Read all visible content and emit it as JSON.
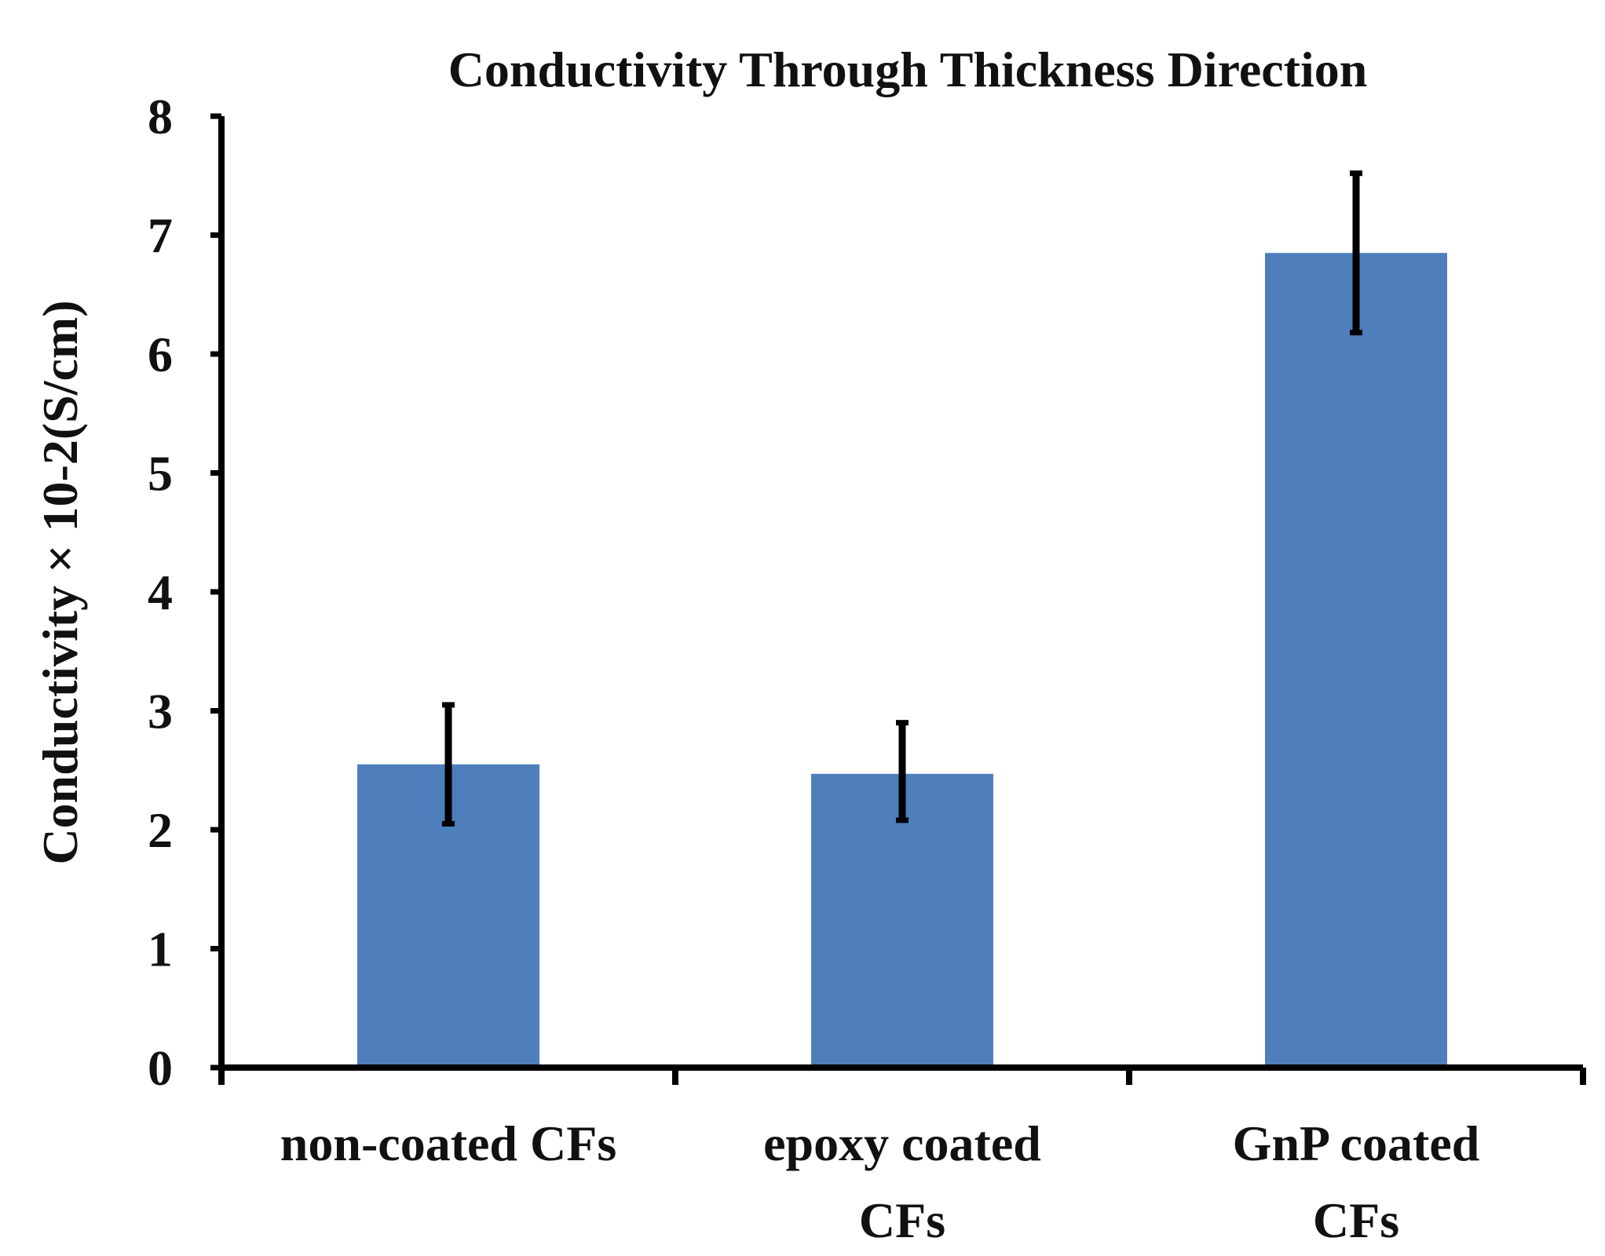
{
  "chart_data": {
    "type": "bar",
    "title": "Conductivity Through Thickness Direction",
    "xlabel": "",
    "ylabel": "Conductivity × 10-2(S/cm)",
    "categories": [
      [
        "non-coated CFs"
      ],
      [
        "epoxy coated",
        "CFs"
      ],
      [
        "GnP coated",
        "CFs"
      ]
    ],
    "values": [
      2.55,
      2.47,
      6.85
    ],
    "error_bars": [
      {
        "low": 2.05,
        "high": 3.05
      },
      {
        "low": 2.08,
        "high": 2.9
      },
      {
        "low": 6.18,
        "high": 7.52
      }
    ],
    "ylim": [
      0,
      8
    ],
    "yticks": [
      0,
      1,
      2,
      3,
      4,
      5,
      6,
      7,
      8
    ],
    "grid": false,
    "legend": "none",
    "colors": {
      "bar": "#4f7ebc",
      "axis": "#000000",
      "error_bar": "#000000",
      "text": "#111111"
    }
  }
}
